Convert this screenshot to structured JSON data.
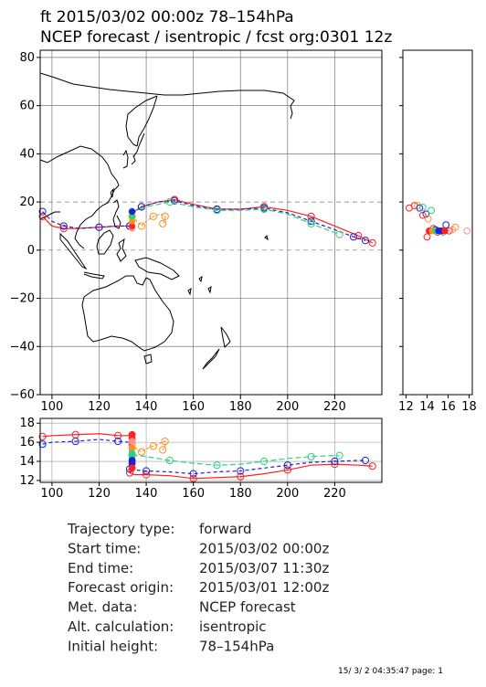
{
  "title_line1": "ft 2015/03/02 00:00z   78–154hPa",
  "title_line2": "NCEP forecast / isentropic / fcst org:0301 12z",
  "footer": "15/ 3/ 2 04:35:47 page: 1",
  "info": [
    {
      "label": "Trajectory type:",
      "value": "forward"
    },
    {
      "label": "Start time:",
      "value": "2015/03/02 00:00z"
    },
    {
      "label": "End time:",
      "value": "2015/03/07 11:30z"
    },
    {
      "label": "Forecast origin:",
      "value": "2015/03/01 12:00z"
    },
    {
      "label": "Met. data:",
      "value": "NCEP forecast"
    },
    {
      "label": "Alt. calculation:",
      "value": "isentropic"
    },
    {
      "label": "Initial height:",
      "value": "  78–154hPa"
    }
  ],
  "colors": {
    "red": "#ff2020",
    "blue": "#2020d0",
    "green": "#30d080",
    "orange": "#ff9020",
    "pink": "#ff9090"
  },
  "chart_data": [
    {
      "type": "line",
      "name": "map",
      "xlim": [
        95,
        240
      ],
      "ylim": [
        -60,
        83
      ],
      "xticks": [
        "100",
        "120",
        "140",
        "160",
        "180",
        "200",
        "220"
      ],
      "yticks": [
        "80",
        "60",
        "40",
        "20",
        "0",
        "−20",
        "−40",
        "−60"
      ],
      "series": [
        {
          "color": "red",
          "points": [
            [
              96,
              14
            ],
            [
              100,
              10
            ],
            [
              105,
              9
            ],
            [
              110,
              9
            ],
            [
              120,
              9.5
            ],
            [
              128,
              10
            ],
            [
              133,
              10
            ],
            [
              135,
              16
            ],
            [
              138,
              18
            ],
            [
              145,
              20
            ],
            [
              152,
              21
            ],
            [
              160,
              19
            ],
            [
              170,
              17
            ],
            [
              180,
              17
            ],
            [
              190,
              18
            ],
            [
              200,
              16.5
            ],
            [
              210,
              14
            ],
            [
              220,
              10
            ],
            [
              230,
              6
            ],
            [
              236,
              3
            ]
          ]
        },
        {
          "color": "blue",
          "points": [
            [
              96,
              16
            ],
            [
              100,
              12
            ],
            [
              105,
              10
            ],
            [
              112,
              9
            ],
            [
              120,
              9.5
            ],
            [
              127,
              10
            ],
            [
              133,
              10
            ],
            [
              135,
              16
            ],
            [
              138,
              18
            ],
            [
              145,
              20
            ],
            [
              152,
              20.5
            ],
            [
              160,
              18.5
            ],
            [
              170,
              17
            ],
            [
              180,
              17
            ],
            [
              190,
              17.5
            ],
            [
              200,
              15.5
            ],
            [
              210,
              12
            ],
            [
              220,
              8.5
            ],
            [
              228,
              5.5
            ],
            [
              233,
              4
            ]
          ]
        },
        {
          "color": "green",
          "points": [
            [
              134,
              16
            ],
            [
              140,
              18
            ],
            [
              150,
              20
            ],
            [
              160,
              18
            ],
            [
              170,
              16.5
            ],
            [
              180,
              16.5
            ],
            [
              190,
              17
            ],
            [
              200,
              15
            ],
            [
              210,
              11
            ],
            [
              218,
              8
            ],
            [
              222,
              6.5
            ]
          ]
        },
        {
          "color": "orange",
          "points": [
            [
              134,
              14
            ],
            [
              136,
              12
            ],
            [
              138,
              10
            ],
            [
              140,
              12
            ],
            [
              143,
              14
            ],
            [
              146,
              15
            ],
            [
              148,
              14
            ],
            [
              148,
              12
            ],
            [
              147,
              11
            ]
          ]
        }
      ]
    },
    {
      "type": "line",
      "name": "height",
      "xlim": [
        95,
        240
      ],
      "ylim": [
        11.8,
        18.5
      ],
      "xticks": [
        "100",
        "120",
        "140",
        "160",
        "180",
        "200",
        "220"
      ],
      "yticks": [
        "18",
        "16",
        "14",
        "12"
      ],
      "series": [
        {
          "color": "red",
          "points": [
            [
              96,
              16.6
            ],
            [
              100,
              16.7
            ],
            [
              110,
              16.8
            ],
            [
              120,
              16.9
            ],
            [
              128,
              16.7
            ],
            [
              133,
              16.7
            ],
            [
              133,
              12.8
            ],
            [
              135,
              12.6
            ],
            [
              140,
              12.6
            ],
            [
              150,
              12.5
            ],
            [
              160,
              12.2
            ],
            [
              170,
              12.3
            ],
            [
              180,
              12.4
            ],
            [
              190,
              12.7
            ],
            [
              200,
              13.1
            ],
            [
              210,
              13.6
            ],
            [
              220,
              13.7
            ],
            [
              230,
              13.6
            ],
            [
              236,
              13.5
            ]
          ]
        },
        {
          "color": "blue",
          "points": [
            [
              96,
              15.8
            ],
            [
              100,
              16
            ],
            [
              110,
              16.1
            ],
            [
              120,
              16.3
            ],
            [
              128,
              16.1
            ],
            [
              133,
              16
            ],
            [
              133,
              13.2
            ],
            [
              135,
              13.1
            ],
            [
              140,
              13
            ],
            [
              150,
              12.9
            ],
            [
              160,
              12.7
            ],
            [
              170,
              12.9
            ],
            [
              180,
              13
            ],
            [
              190,
              13.3
            ],
            [
              200,
              13.6
            ],
            [
              210,
              13.9
            ],
            [
              220,
              14
            ],
            [
              230,
              14.1
            ],
            [
              233,
              14.1
            ]
          ]
        },
        {
          "color": "green",
          "points": [
            [
              134,
              14.7
            ],
            [
              140,
              14.5
            ],
            [
              150,
              14.1
            ],
            [
              160,
              13.8
            ],
            [
              170,
              13.6
            ],
            [
              180,
              13.7
            ],
            [
              190,
              14
            ],
            [
              200,
              14.3
            ],
            [
              210,
              14.5
            ],
            [
              218,
              14.6
            ],
            [
              222,
              14.6
            ]
          ]
        },
        {
          "color": "orange",
          "points": [
            [
              134,
              15.8
            ],
            [
              136,
              15.3
            ],
            [
              138,
              15
            ],
            [
              140,
              15.3
            ],
            [
              143,
              15.6
            ],
            [
              146,
              15.9
            ],
            [
              148,
              16.1
            ],
            [
              148,
              15.5
            ],
            [
              147,
              15.2
            ]
          ]
        }
      ]
    },
    {
      "type": "scatter",
      "name": "side",
      "xlim": [
        11.7,
        18.3
      ],
      "ylim": [
        -60,
        83
      ],
      "xticks": [
        "12",
        "14",
        "16",
        "18"
      ]
    }
  ]
}
